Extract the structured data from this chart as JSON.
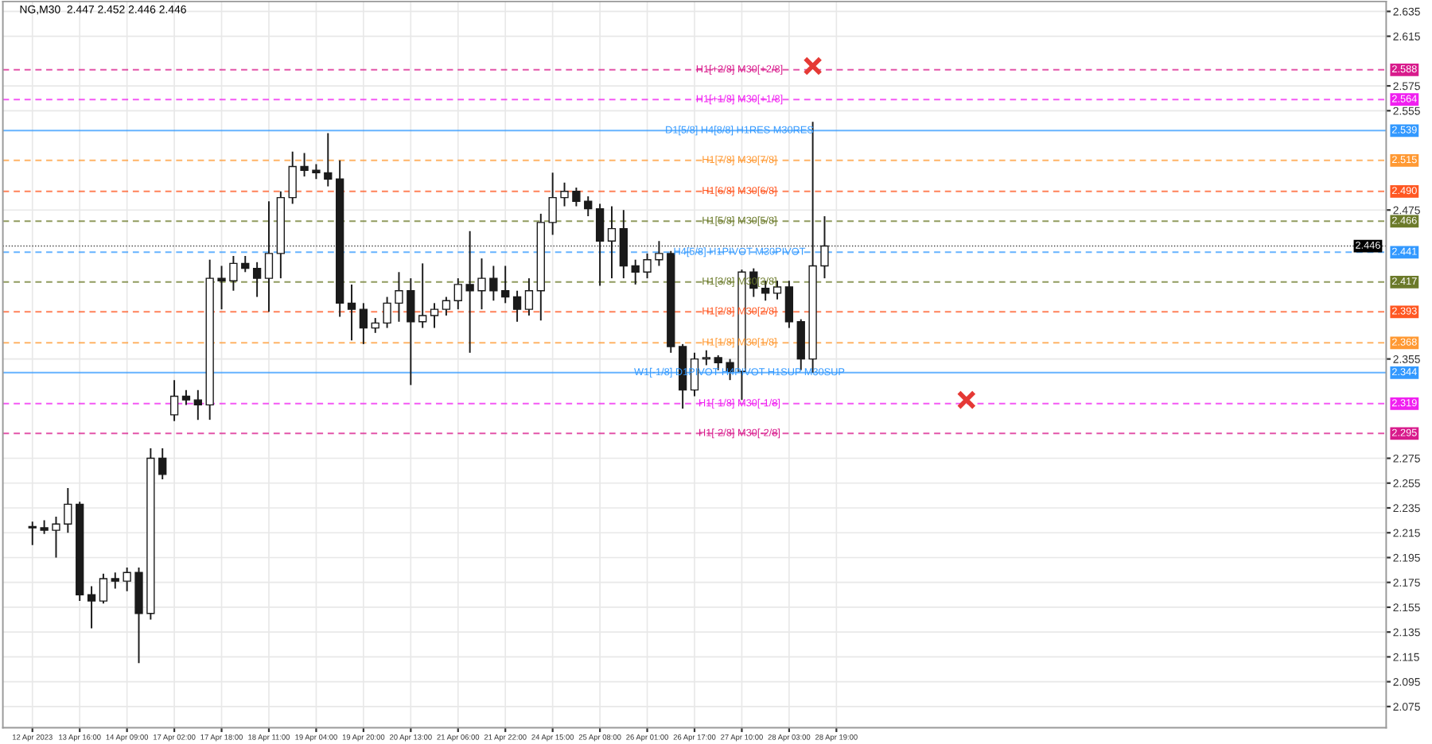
{
  "chart_data": {
    "type": "candlestick",
    "title": "NG,M30  2.447 2.452 2.446 2.446",
    "color": "#1a1a1a",
    "categories": [
      "12 Apr 2023",
      null,
      null,
      null,
      "13 Apr 16:00",
      null,
      null,
      null,
      "14 Apr 09:00",
      null,
      null,
      null,
      "17 Apr 02:00",
      null,
      null,
      null,
      "17 Apr 18:00",
      null,
      null,
      null,
      "18 Apr 11:00",
      null,
      null,
      null,
      "19 Apr 04:00",
      null,
      null,
      null,
      "19 Apr 20:00",
      null,
      null,
      null,
      "20 Apr 13:00",
      null,
      null,
      null,
      "21 Apr 06:00",
      null,
      null,
      null,
      "21 Apr 22:00",
      null,
      null,
      null,
      "24 Apr 15:00",
      null,
      null,
      null,
      "25 Apr 08:00",
      null,
      null,
      null,
      "26 Apr 01:00",
      null,
      null,
      null,
      "26 Apr 17:00",
      null,
      null,
      null,
      "27 Apr 10:00",
      null,
      null,
      null,
      "28 Apr 03:00",
      null,
      null,
      null,
      "28 Apr 19:00",
      null,
      null,
      null,
      null,
      null,
      null,
      null,
      null,
      null,
      null,
      null,
      null,
      null,
      null,
      null,
      null,
      null,
      null,
      null,
      null,
      null,
      null,
      null,
      null,
      null,
      null,
      null,
      null,
      null,
      null,
      null,
      null,
      null,
      null,
      null,
      null,
      null,
      null,
      null,
      null,
      null,
      null,
      null,
      null,
      null,
      null
    ],
    "ohlc": [
      [
        2.22,
        2.224,
        2.205,
        2.219
      ],
      [
        2.219,
        2.225,
        2.214,
        2.217
      ],
      [
        2.217,
        2.228,
        2.195,
        2.222
      ],
      [
        2.222,
        2.251,
        2.215,
        2.238
      ],
      [
        2.238,
        2.24,
        2.16,
        2.165
      ],
      [
        2.165,
        2.172,
        2.138,
        2.16
      ],
      [
        2.16,
        2.182,
        2.158,
        2.178
      ],
      [
        2.178,
        2.183,
        2.17,
        2.176
      ],
      [
        2.176,
        2.187,
        2.168,
        2.183
      ],
      [
        2.183,
        2.187,
        2.11,
        2.15
      ],
      [
        2.15,
        2.283,
        2.145,
        2.275
      ],
      [
        2.275,
        2.283,
        2.258,
        2.262
      ],
      [
        2.31,
        2.338,
        2.305,
        2.325
      ],
      [
        2.325,
        2.33,
        2.318,
        2.322
      ],
      [
        2.322,
        2.33,
        2.306,
        2.318
      ],
      [
        2.318,
        2.435,
        2.306,
        2.42
      ],
      [
        2.42,
        2.43,
        2.395,
        2.418
      ],
      [
        2.418,
        2.438,
        2.41,
        2.432
      ],
      [
        2.432,
        2.438,
        2.425,
        2.428
      ],
      [
        2.428,
        2.433,
        2.405,
        2.42
      ],
      [
        2.42,
        2.482,
        2.393,
        2.44
      ],
      [
        2.44,
        2.49,
        2.42,
        2.485
      ],
      [
        2.485,
        2.522,
        2.48,
        2.51
      ],
      [
        2.51,
        2.521,
        2.502,
        2.507
      ],
      [
        2.507,
        2.512,
        2.5,
        2.505
      ],
      [
        2.505,
        2.537,
        2.494,
        2.5
      ],
      [
        2.5,
        2.515,
        2.389,
        2.4
      ],
      [
        2.4,
        2.415,
        2.37,
        2.395
      ],
      [
        2.395,
        2.4,
        2.367,
        2.38
      ],
      [
        2.38,
        2.388,
        2.376,
        2.384
      ],
      [
        2.384,
        2.405,
        2.38,
        2.4
      ],
      [
        2.4,
        2.425,
        2.385,
        2.41
      ],
      [
        2.41,
        2.42,
        2.334,
        2.385
      ],
      [
        2.385,
        2.432,
        2.38,
        2.39
      ],
      [
        2.39,
        2.4,
        2.38,
        2.395
      ],
      [
        2.395,
        2.405,
        2.39,
        2.402
      ],
      [
        2.402,
        2.42,
        2.395,
        2.415
      ],
      [
        2.415,
        2.458,
        2.36,
        2.41
      ],
      [
        2.41,
        2.436,
        2.395,
        2.42
      ],
      [
        2.42,
        2.43,
        2.402,
        2.41
      ],
      [
        2.41,
        2.43,
        2.4,
        2.405
      ],
      [
        2.405,
        2.41,
        2.385,
        2.395
      ],
      [
        2.395,
        2.42,
        2.39,
        2.41
      ],
      [
        2.41,
        2.472,
        2.386,
        2.465
      ],
      [
        2.465,
        2.505,
        2.455,
        2.485
      ],
      [
        2.485,
        2.497,
        2.478,
        2.49
      ],
      [
        2.49,
        2.493,
        2.478,
        2.482
      ],
      [
        2.482,
        2.486,
        2.47,
        2.476
      ],
      [
        2.476,
        2.48,
        2.414,
        2.45
      ],
      [
        2.45,
        2.478,
        2.42,
        2.46
      ],
      [
        2.46,
        2.475,
        2.42,
        2.43
      ],
      [
        2.43,
        2.435,
        2.415,
        2.425
      ],
      [
        2.425,
        2.44,
        2.42,
        2.435
      ],
      [
        2.435,
        2.45,
        2.43,
        2.44
      ],
      [
        2.44,
        2.442,
        2.36,
        2.365
      ],
      [
        2.365,
        2.367,
        2.315,
        2.33
      ],
      [
        2.33,
        2.36,
        2.325,
        2.355
      ],
      [
        2.355,
        2.362,
        2.35,
        2.356
      ],
      [
        2.356,
        2.358,
        2.346,
        2.352
      ],
      [
        2.352,
        2.355,
        2.338,
        2.345
      ],
      [
        2.345,
        2.427,
        2.322,
        2.425
      ],
      [
        2.425,
        2.428,
        2.405,
        2.412
      ],
      [
        2.412,
        2.418,
        2.402,
        2.408
      ],
      [
        2.408,
        2.418,
        2.403,
        2.413
      ],
      [
        2.413,
        2.418,
        2.38,
        2.385
      ],
      [
        2.385,
        2.387,
        2.346,
        2.355
      ],
      [
        2.355,
        2.546,
        2.344,
        2.43
      ],
      [
        2.43,
        2.47,
        2.42,
        2.446
      ],
      null,
      null,
      null,
      null,
      null,
      null,
      null,
      null,
      null,
      null,
      null,
      null,
      null,
      null,
      null,
      null,
      null,
      null,
      null,
      null,
      null,
      null,
      null,
      null,
      null,
      null,
      null,
      null,
      null,
      null,
      null,
      null,
      null,
      null,
      null,
      null,
      null,
      null,
      null,
      null,
      null,
      null,
      null,
      null,
      null,
      null,
      null
    ],
    "series": [
      {
        "type": "scatter",
        "color": "#e53935",
        "marker": "cross",
        "values": [
          null,
          null,
          null,
          null,
          null,
          null,
          null,
          null,
          null,
          null,
          null,
          null,
          null,
          null,
          null,
          null,
          null,
          null,
          null,
          null,
          null,
          null,
          null,
          null,
          null,
          null,
          null,
          null,
          null,
          null,
          null,
          null,
          null,
          null,
          null,
          null,
          null,
          null,
          null,
          null,
          null,
          null,
          null,
          null,
          null,
          null,
          null,
          null,
          null,
          null,
          null,
          null,
          null,
          null,
          null,
          null,
          null,
          null,
          null,
          null,
          null,
          null,
          null,
          null,
          null,
          null,
          2.591,
          null,
          null,
          null,
          null,
          null,
          null,
          null,
          null,
          null,
          null,
          null,
          null,
          2.322,
          null,
          null,
          null,
          null,
          null,
          null,
          null,
          null,
          null,
          null,
          null,
          null,
          null,
          null,
          null,
          null,
          null,
          null,
          null,
          null,
          null,
          null,
          null,
          null,
          null,
          null,
          null,
          null,
          null,
          null,
          null,
          null,
          null,
          null,
          null
        ]
      }
    ],
    "ylim": [
      2.058,
      2.643
    ],
    "yticks": [
      2.635,
      2.615,
      2.575,
      2.555,
      2.475,
      2.355,
      2.275,
      2.255,
      2.235,
      2.215,
      2.195,
      2.175,
      2.155,
      2.135,
      2.115,
      2.095,
      2.075
    ],
    "grid": true,
    "annotations": [
      {
        "text": "2.588",
        "y": 2.588
      },
      {
        "text": "2.564",
        "y": 2.564
      },
      {
        "text": "2.539",
        "y": 2.539
      },
      {
        "text": "2.515",
        "y": 2.515
      },
      {
        "text": "2.490",
        "y": 2.49
      },
      {
        "text": "2.466",
        "y": 2.466
      },
      {
        "text": "2.446",
        "y": 2.446
      },
      {
        "text": "2.441",
        "y": 2.441
      },
      {
        "text": "2.417",
        "y": 2.417
      },
      {
        "text": "2.393",
        "y": 2.393
      },
      {
        "text": "2.368",
        "y": 2.368
      },
      {
        "text": "2.344",
        "y": 2.344
      },
      {
        "text": "2.319",
        "y": 2.319
      },
      {
        "text": "2.295",
        "y": 2.295
      }
    ],
    "ref_lines": [
      {
        "axis": "y",
        "value": 2.588,
        "label": "H1[+2/8] M30[+2/8]",
        "color": "#d81b8c",
        "line_style": "dashed"
      },
      {
        "axis": "y",
        "value": 2.564,
        "label": "H1[+1/8] M30[+1/8]",
        "color": "#f020f0",
        "line_style": "dashed"
      },
      {
        "axis": "y",
        "value": 2.539,
        "label": "D1[5/8] H4[8/8] H1RES M30RES",
        "color": "#3399ff",
        "line_style": "solid"
      },
      {
        "axis": "y",
        "value": 2.515,
        "label": "H1[7/8] M30[7/8]",
        "color": "#ff9933",
        "line_style": "dashed"
      },
      {
        "axis": "y",
        "value": 2.49,
        "label": "H1[6/8] M30[6/8]",
        "color": "#ff5722",
        "line_style": "dashed"
      },
      {
        "axis": "y",
        "value": 2.466,
        "label": "H1[5/8] M30[5/8]",
        "color": "#6b7a2a",
        "line_style": "dashed"
      },
      {
        "axis": "y",
        "value": 2.446,
        "label": null,
        "color": "#000000",
        "line_style": "dotted"
      },
      {
        "axis": "y",
        "value": 2.441,
        "label": "H4[5/8] H1PIVOT M30PIVOT",
        "color": "#3399ff",
        "line_style": "dashed"
      },
      {
        "axis": "y",
        "value": 2.417,
        "label": "H1[3/8] M30[3/8]",
        "color": "#6b7a2a",
        "line_style": "dashed"
      },
      {
        "axis": "y",
        "value": 2.393,
        "label": "H1[2/8] M30[2/8]",
        "color": "#ff5722",
        "line_style": "dashed"
      },
      {
        "axis": "y",
        "value": 2.368,
        "label": "H1[1/8] M30[1/8]",
        "color": "#ff9933",
        "line_style": "dashed"
      },
      {
        "axis": "y",
        "value": 2.344,
        "label": "W1[-1/8] D1PIVOT H4PIVOT H1SUP M30SUP",
        "color": "#3399ff",
        "line_style": "solid"
      },
      {
        "axis": "y",
        "value": 2.319,
        "label": "H1[-1/8] M30[-1/8]",
        "color": "#f020f0",
        "line_style": "dashed"
      },
      {
        "axis": "y",
        "value": 2.295,
        "label": "H1[-2/8] M30[-2/8]",
        "color": "#d81b8c",
        "line_style": "dashed"
      }
    ]
  }
}
